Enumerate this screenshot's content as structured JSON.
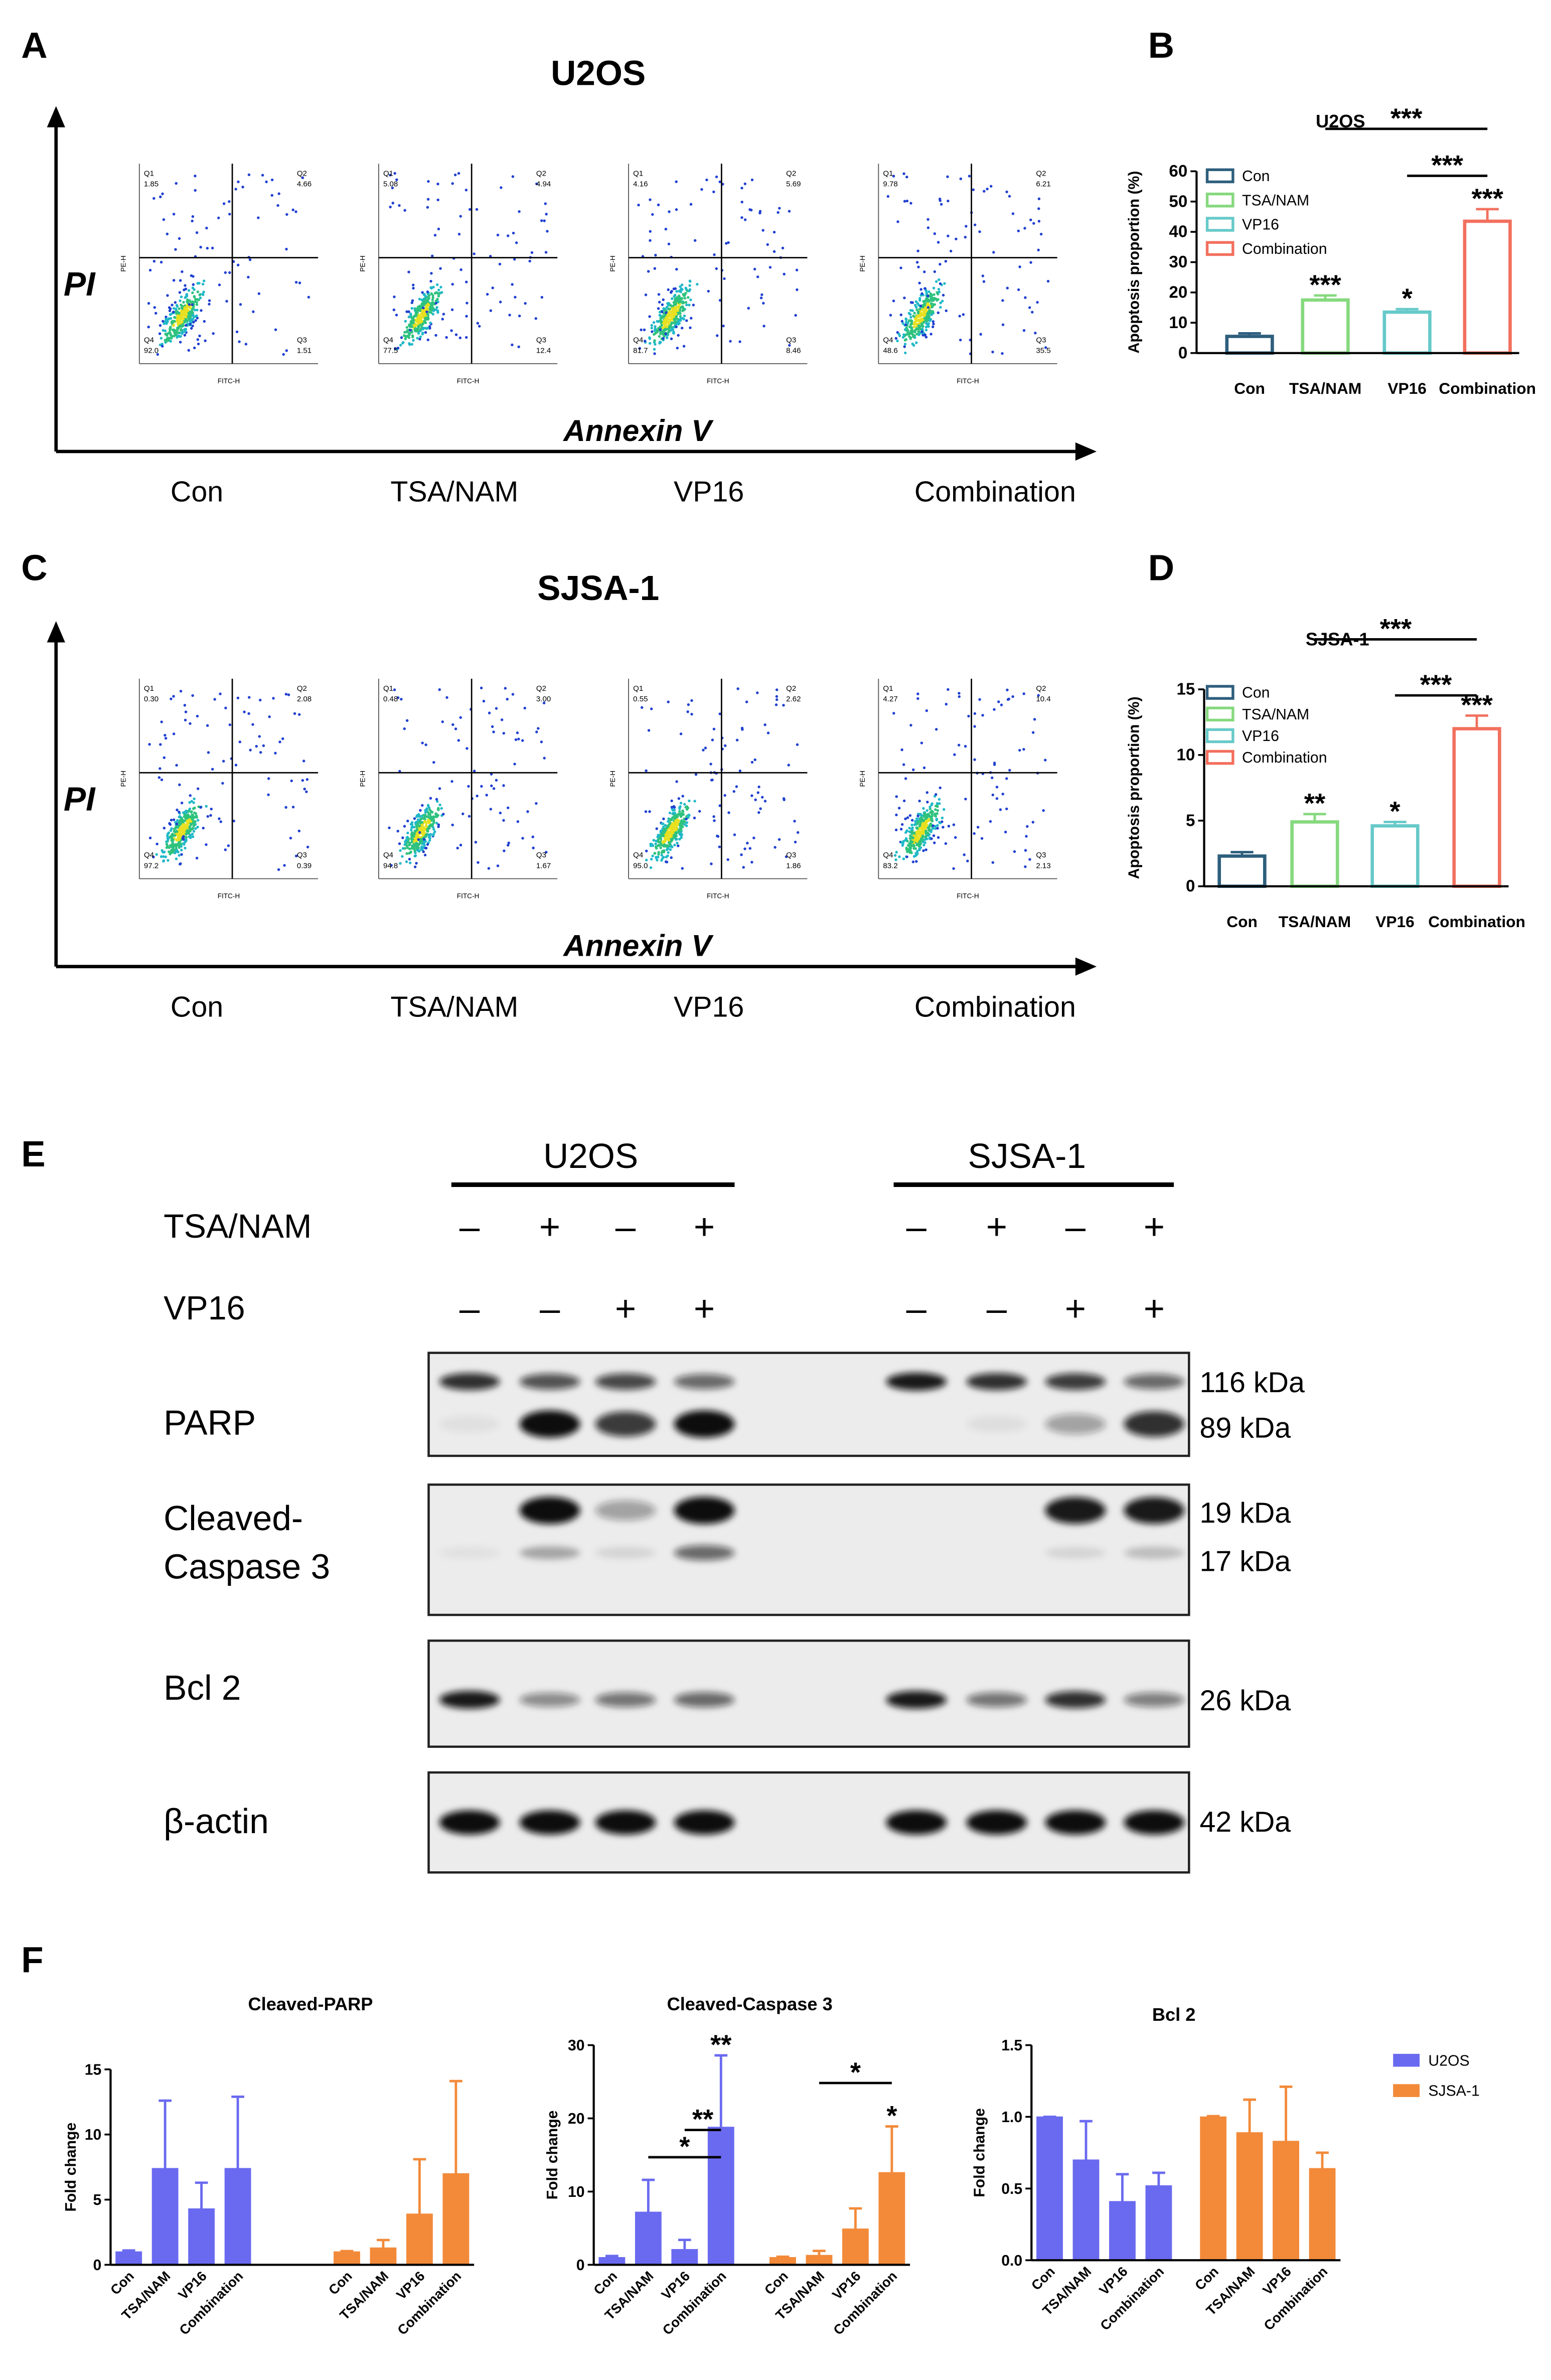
{
  "panel_letters": [
    "A",
    "B",
    "C",
    "D",
    "E",
    "F"
  ],
  "flow_cytometry": [
    {
      "title": "U2OS",
      "y_axis": "PI",
      "x_axis": "Annexin V",
      "plot_y_label": "PE-H",
      "plot_x_label": "FITC-H",
      "groups": [
        "Con",
        "TSA/NAM",
        "VP16",
        "Combination"
      ],
      "quadrant_names": [
        "Q1",
        "Q2",
        "Q3",
        "Q4"
      ],
      "quadrant_values": [
        [
          "1.85",
          "4.66",
          "1.51",
          "92.0"
        ],
        [
          "5.08",
          "4.94",
          "12.4",
          "77.5"
        ],
        [
          "4.16",
          "5.69",
          "8.46",
          "81.7"
        ],
        [
          "9.78",
          "6.21",
          "35.5",
          "48.6"
        ]
      ]
    },
    {
      "title": "SJSA-1",
      "y_axis": "PI",
      "x_axis": "Annexin V",
      "plot_y_label": "PE-H",
      "plot_x_label": "FITC-H",
      "groups": [
        "Con",
        "TSA/NAM",
        "VP16",
        "Combination"
      ],
      "quadrant_names": [
        "Q1",
        "Q2",
        "Q3",
        "Q4"
      ],
      "quadrant_values": [
        [
          "0.30",
          "2.08",
          "0.39",
          "97.2"
        ],
        [
          "0.48",
          "3.00",
          "1.67",
          "94.8"
        ],
        [
          "0.55",
          "2.62",
          "1.86",
          "95.0"
        ],
        [
          "4.27",
          "10.4",
          "2.13",
          "83.2"
        ]
      ]
    }
  ],
  "chart_data": [
    {
      "type": "bar",
      "title": "U2OS",
      "y_label": "Apoptosis proportion (%)",
      "bar_style": "outline",
      "legend": "upper left",
      "categories": [
        "Con",
        "TSA/NAM",
        "VP16",
        "Combination"
      ],
      "values": [
        5.5,
        17.5,
        13.5,
        43.5
      ],
      "errors": [
        1,
        1.5,
        1,
        4
      ],
      "colors": [
        "#2e5f7d",
        "#86d97e",
        "#67c9c9",
        "#f2705e"
      ],
      "ylim": [
        0,
        60
      ],
      "yticks": [
        0,
        10,
        20,
        30,
        40,
        50,
        60
      ],
      "significance": [
        {
          "category": "TSA/NAM",
          "text": "***"
        },
        {
          "category": "VP16",
          "text": "*"
        },
        {
          "category": "Combination",
          "text": "***"
        }
      ],
      "brackets": [
        {
          "from": "TSA/NAM",
          "to": "Combination",
          "text": "***"
        },
        {
          "from": "VP16",
          "to": "Combination",
          "text": "***"
        }
      ]
    },
    {
      "type": "bar",
      "title": "SJSA-1",
      "y_label": "Apoptosis proportion (%)",
      "bar_style": "outline",
      "legend": "upper left",
      "categories": [
        "Con",
        "TSA/NAM",
        "VP16",
        "Combination"
      ],
      "values": [
        2.3,
        4.9,
        4.6,
        12.0
      ],
      "errors": [
        0.3,
        0.6,
        0.3,
        1.0
      ],
      "colors": [
        "#2e5f7d",
        "#86d97e",
        "#67c9c9",
        "#f2705e"
      ],
      "ylim": [
        0,
        15
      ],
      "yticks": [
        0,
        5,
        10,
        15
      ],
      "significance": [
        {
          "category": "TSA/NAM",
          "text": "**"
        },
        {
          "category": "VP16",
          "text": "*"
        },
        {
          "category": "Combination",
          "text": "***"
        }
      ],
      "brackets": [
        {
          "from": "TSA/NAM",
          "to": "Combination",
          "text": "***"
        },
        {
          "from": "VP16",
          "to": "Combination",
          "text": "***"
        }
      ]
    },
    {
      "type": "bar",
      "title": "Cleaved-PARP",
      "y_label": "Fold change",
      "bar_style": "solid",
      "categories": [
        "Con",
        "TSA/NAM",
        "VP16",
        "Combination"
      ],
      "series": [
        {
          "name": "U2OS",
          "color": "#6a6af0",
          "values": [
            1,
            7.4,
            4.3,
            7.4
          ],
          "errors": [
            0.1,
            5.2,
            2,
            5.5
          ]
        },
        {
          "name": "SJSA-1",
          "color": "#f28a3a",
          "values": [
            1,
            1.3,
            3.9,
            7.0
          ],
          "errors": [
            0.05,
            0.6,
            4.2,
            7.1
          ]
        }
      ],
      "ylim": [
        0,
        15
      ],
      "yticks": [
        0,
        5,
        10,
        15
      ]
    },
    {
      "type": "bar",
      "title": "Cleaved-Caspase 3",
      "y_label": "Fold change",
      "bar_style": "solid",
      "categories": [
        "Con",
        "TSA/NAM",
        "VP16",
        "Combination"
      ],
      "series": [
        {
          "name": "U2OS",
          "color": "#6a6af0",
          "values": [
            1,
            7.2,
            2.1,
            18.8
          ],
          "errors": [
            0.2,
            4.4,
            1.3,
            9.8
          ]
        },
        {
          "name": "SJSA-1",
          "color": "#f28a3a",
          "values": [
            1,
            1.3,
            4.9,
            12.6
          ],
          "errors": [
            0.1,
            0.6,
            2.8,
            6.3
          ]
        }
      ],
      "ylim": [
        0,
        30
      ],
      "yticks": [
        0,
        10,
        20,
        30
      ],
      "significance": [
        {
          "series": "U2OS",
          "category": "Combination",
          "text": "**"
        },
        {
          "series": "SJSA-1",
          "category": "Combination",
          "text": "*"
        }
      ],
      "brackets": [
        {
          "series": "U2OS",
          "from": "TSA/NAM",
          "to": "Combination",
          "text": "*"
        },
        {
          "series": "U2OS",
          "from": "VP16",
          "to": "Combination",
          "text": "**"
        },
        {
          "series": "SJSA-1",
          "from": "TSA/NAM",
          "to": "Combination",
          "text": "*"
        }
      ]
    },
    {
      "type": "bar",
      "title": "Bcl 2",
      "y_label": "Fold change",
      "bar_style": "solid",
      "legend": "right",
      "categories": [
        "Con",
        "TSA/NAM",
        "VP16",
        "Combination"
      ],
      "series": [
        {
          "name": "U2OS",
          "color": "#6a6af0",
          "values": [
            1.0,
            0.7,
            0.41,
            0.52
          ],
          "errors": [
            0,
            0.27,
            0.19,
            0.09
          ]
        },
        {
          "name": "SJSA-1",
          "color": "#f28a3a",
          "values": [
            1.0,
            0.89,
            0.83,
            0.64
          ],
          "errors": [
            0.005,
            0.23,
            0.38,
            0.11
          ]
        }
      ],
      "ylim": [
        0,
        1.5
      ],
      "yticks": [
        {
          "value": 0,
          "label": "0.0"
        },
        {
          "value": 0.5,
          "label": "0.5"
        },
        {
          "value": 1,
          "label": "1.0"
        },
        {
          "value": 1.5,
          "label": "1.5"
        }
      ]
    }
  ],
  "western_blot": {
    "cell_lines": [
      "U2OS",
      "SJSA-1"
    ],
    "treatments": [
      {
        "name": "TSA/NAM",
        "signs": [
          "–",
          "+",
          "–",
          "+",
          "–",
          "+",
          "–",
          "+"
        ]
      },
      {
        "name": "VP16",
        "signs": [
          "–",
          "–",
          "+",
          "+",
          "–",
          "–",
          "+",
          "+"
        ]
      }
    ],
    "blots": [
      {
        "protein": [
          "PARP"
        ],
        "sizes": [
          "116 kDa",
          "89 kDa"
        ]
      },
      {
        "protein": [
          "Cleaved-",
          "Caspase 3"
        ],
        "sizes": [
          "19 kDa",
          "17 kDa"
        ]
      },
      {
        "protein": [
          "Bcl 2"
        ],
        "sizes": [
          "26 kDa"
        ]
      },
      {
        "protein": [
          "β-actin"
        ],
        "sizes": [
          "42 kDa"
        ]
      }
    ]
  }
}
